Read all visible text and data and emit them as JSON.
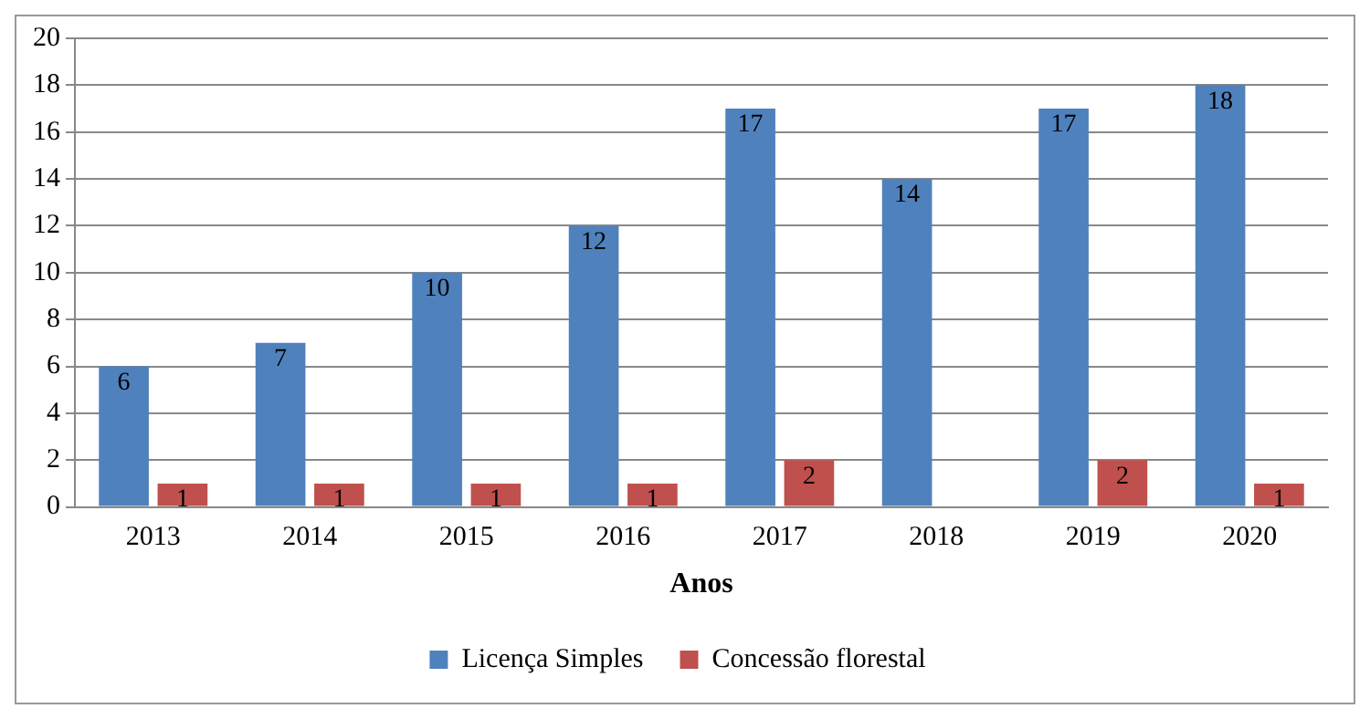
{
  "chart_data": {
    "type": "bar",
    "xlabel": "Anos",
    "categories": [
      "2013",
      "2014",
      "2015",
      "2016",
      "2017",
      "2018",
      "2019",
      "2020"
    ],
    "series": [
      {
        "name": "Licença Simples",
        "color": "#4f81bd",
        "values": [
          6,
          7,
          10,
          12,
          17,
          14,
          17,
          18
        ]
      },
      {
        "name": "Concessão florestal",
        "color": "#c0504d",
        "values": [
          1,
          1,
          1,
          1,
          2,
          null,
          2,
          1
        ]
      }
    ],
    "ylim": [
      0,
      20
    ],
    "yticks": [
      0,
      2,
      4,
      6,
      8,
      10,
      12,
      14,
      16,
      18,
      20
    ],
    "grid": "y",
    "legend": "bottom",
    "data_labels": true
  }
}
